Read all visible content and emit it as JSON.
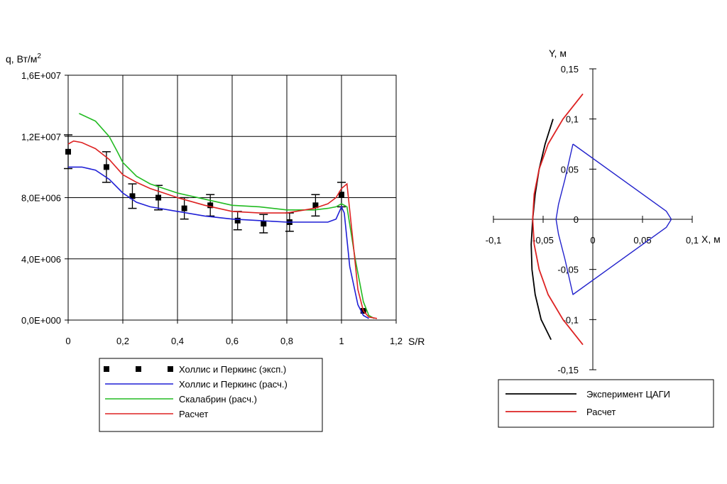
{
  "chart_data": [
    {
      "type": "line",
      "ylabel": "q, Вт/м",
      "ylabel_sup": "2",
      "xlabel": "S/R",
      "xlim": [
        0,
        1.2
      ],
      "ylim": [
        0,
        16000000
      ],
      "grid": true,
      "x_ticks": [
        0,
        0.2,
        0.4,
        0.6,
        0.8,
        1,
        1.2
      ],
      "x_tick_labels": [
        "0",
        "0,2",
        "0,4",
        "0,6",
        "0,8",
        "1",
        "1,2"
      ],
      "y_ticks": [
        0,
        4000000,
        8000000,
        12000000,
        16000000
      ],
      "y_tick_labels": [
        "0,0E+000",
        "4,0E+006",
        "8,0E+006",
        "1,2E+007",
        "1,6E+007"
      ],
      "legend_position": "bottom",
      "series": [
        {
          "name": "Холлис и Перкинс (эксп.)",
          "kind": "scatter",
          "color": "#000000",
          "x": [
            0,
            0.14,
            0.235,
            0.33,
            0.425,
            0.52,
            0.62,
            0.715,
            0.81,
            0.905,
            1.0,
            1.08
          ],
          "y": [
            11000000,
            10000000,
            8100000,
            8000000,
            7300000,
            7500000,
            6500000,
            6300000,
            6400000,
            7500000,
            8200000,
            600000
          ],
          "err": [
            1100000,
            1000000,
            800000,
            800000,
            700000,
            700000,
            600000,
            600000,
            600000,
            700000,
            800000,
            0
          ]
        },
        {
          "name": "Холлис и Перкинс (расч.)",
          "kind": "line",
          "color": "#1f1fd6",
          "x": [
            0,
            0.05,
            0.1,
            0.15,
            0.2,
            0.25,
            0.3,
            0.4,
            0.5,
            0.6,
            0.7,
            0.8,
            0.9,
            0.95,
            0.98,
            1.0,
            1.01,
            1.03,
            1.06,
            1.08,
            1.1
          ],
          "y": [
            10000000,
            10000000,
            9800000,
            9200000,
            8300000,
            7700000,
            7400000,
            7100000,
            6800000,
            6600000,
            6500000,
            6400000,
            6400000,
            6400000,
            6600000,
            7400000,
            7000000,
            3500000,
            1000000,
            300000,
            100000
          ]
        },
        {
          "name": "Скалабрин (расч.)",
          "kind": "line",
          "color": "#22bb22",
          "x": [
            0.04,
            0.1,
            0.15,
            0.18,
            0.2,
            0.25,
            0.3,
            0.35,
            0.4,
            0.5,
            0.6,
            0.7,
            0.8,
            0.9,
            0.95,
            0.98,
            1.0,
            1.02,
            1.05,
            1.08,
            1.1,
            1.12
          ],
          "y": [
            13500000,
            13000000,
            12000000,
            11000000,
            10300000,
            9400000,
            8900000,
            8600000,
            8300000,
            7900000,
            7500000,
            7400000,
            7200000,
            7200000,
            7300000,
            7400000,
            7600000,
            7400000,
            4000000,
            1200000,
            300000,
            100000
          ]
        },
        {
          "name": "Расчет",
          "kind": "line",
          "color": "#dd2222",
          "x": [
            0,
            0.02,
            0.05,
            0.1,
            0.15,
            0.2,
            0.25,
            0.3,
            0.35,
            0.4,
            0.5,
            0.6,
            0.7,
            0.8,
            0.9,
            0.95,
            0.98,
            1.0,
            1.02,
            1.04,
            1.06,
            1.08,
            1.1,
            1.13
          ],
          "y": [
            11500000,
            11700000,
            11600000,
            11200000,
            10500000,
            9500000,
            9000000,
            8600000,
            8300000,
            8000000,
            7500000,
            7100000,
            7000000,
            7000000,
            7300000,
            7600000,
            8000000,
            8600000,
            8900000,
            5500000,
            2000000,
            600000,
            200000,
            100000
          ]
        }
      ]
    },
    {
      "type": "line",
      "ylabel": "Y, м",
      "xlabel": "X, м",
      "xlim": [
        -0.1,
        0.1
      ],
      "ylim": [
        -0.15,
        0.15
      ],
      "grid": false,
      "x_ticks": [
        -0.1,
        -0.05,
        0,
        0.05,
        0.1
      ],
      "x_tick_labels": [
        "-0,1",
        "-0,05",
        "0",
        "0,05",
        "0,1"
      ],
      "y_ticks": [
        -0.15,
        -0.1,
        -0.05,
        0,
        0.05,
        0.1,
        0.15
      ],
      "y_tick_labels": [
        "-0,15",
        "-0,1",
        "-0,05",
        "0",
        "0,05",
        "0,1",
        "0,15"
      ],
      "legend_position": "bottom",
      "series": [
        {
          "name": "Эксперимент ЦАГИ",
          "color": "#000000",
          "x": [
            -0.04,
            -0.048,
            -0.054,
            -0.058,
            -0.0605,
            -0.062,
            -0.0612,
            -0.058,
            -0.052,
            -0.042
          ],
          "y": [
            0.1,
            0.075,
            0.05,
            0.025,
            0,
            -0.025,
            -0.05,
            -0.075,
            -0.1,
            -0.12
          ]
        },
        {
          "name": "Расчет",
          "color": "#dd2222",
          "x": [
            -0.01,
            -0.03,
            -0.045,
            -0.054,
            -0.059,
            -0.0605,
            -0.059,
            -0.054,
            -0.045,
            -0.03,
            -0.01
          ],
          "y": [
            0.125,
            0.1,
            0.075,
            0.05,
            0.025,
            0,
            -0.025,
            -0.05,
            -0.075,
            -0.1,
            -0.125
          ]
        },
        {
          "name": "body contour",
          "legend": false,
          "color": "#2222cc",
          "x": [
            -0.02,
            0.074,
            0.079,
            0.074,
            -0.02,
            -0.028,
            -0.0345,
            -0.037,
            -0.0345,
            -0.028,
            -0.02
          ],
          "y": [
            0.075,
            0.008,
            0,
            -0.008,
            -0.075,
            -0.04,
            -0.015,
            0,
            0.015,
            0.04,
            0.075
          ]
        }
      ]
    }
  ]
}
